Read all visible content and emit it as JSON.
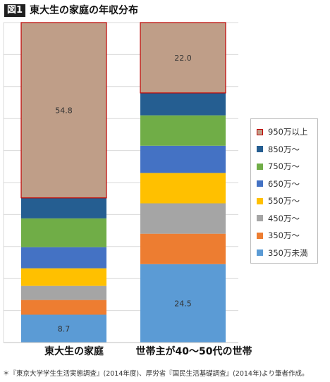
{
  "header": {
    "figure_label": "図1",
    "title": "東大生の家庭の年収分布"
  },
  "footnote": "＊『東京大学学生生活実態調査』(2014年度)、厚労省『国民生活基礎調査』(2014年)より筆者作成。",
  "chart_data": {
    "type": "bar",
    "stacked": true,
    "percent_stacked": true,
    "title": "東大生の家庭の年収分布",
    "xlabel": "",
    "ylabel": "",
    "ylim": [
      0,
      100
    ],
    "grid": true,
    "legend_position": "right",
    "categories": [
      "東大生の家庭",
      "世帯主が40〜50代の世帯"
    ],
    "series": [
      {
        "name": "350万未満",
        "color": "#5B9BD5",
        "values": [
          8.7,
          24.5
        ],
        "labels": [
          "8.7",
          "24.5"
        ]
      },
      {
        "name": "350万〜",
        "color": "#ED7D31",
        "values": [
          4.6,
          9.5
        ],
        "labels": [
          "",
          ""
        ]
      },
      {
        "name": "450万〜",
        "color": "#A5A5A5",
        "values": [
          4.4,
          9.5
        ],
        "labels": [
          "",
          ""
        ]
      },
      {
        "name": "550万〜",
        "color": "#FFC000",
        "values": [
          5.5,
          9.5
        ],
        "labels": [
          "",
          ""
        ]
      },
      {
        "name": "650万〜",
        "color": "#4472C4",
        "values": [
          6.6,
          8.5
        ],
        "labels": [
          "",
          ""
        ]
      },
      {
        "name": "750万〜",
        "color": "#70AD47",
        "values": [
          9.0,
          9.5
        ],
        "labels": [
          "",
          ""
        ]
      },
      {
        "name": "850万〜",
        "color": "#255E91",
        "values": [
          6.4,
          7.0
        ],
        "labels": [
          "",
          ""
        ]
      },
      {
        "name": "950万以上",
        "color": "#BF9E88",
        "border": "#C00000",
        "values": [
          54.8,
          22.0
        ],
        "labels": [
          "54.8",
          "22.0"
        ]
      }
    ]
  }
}
